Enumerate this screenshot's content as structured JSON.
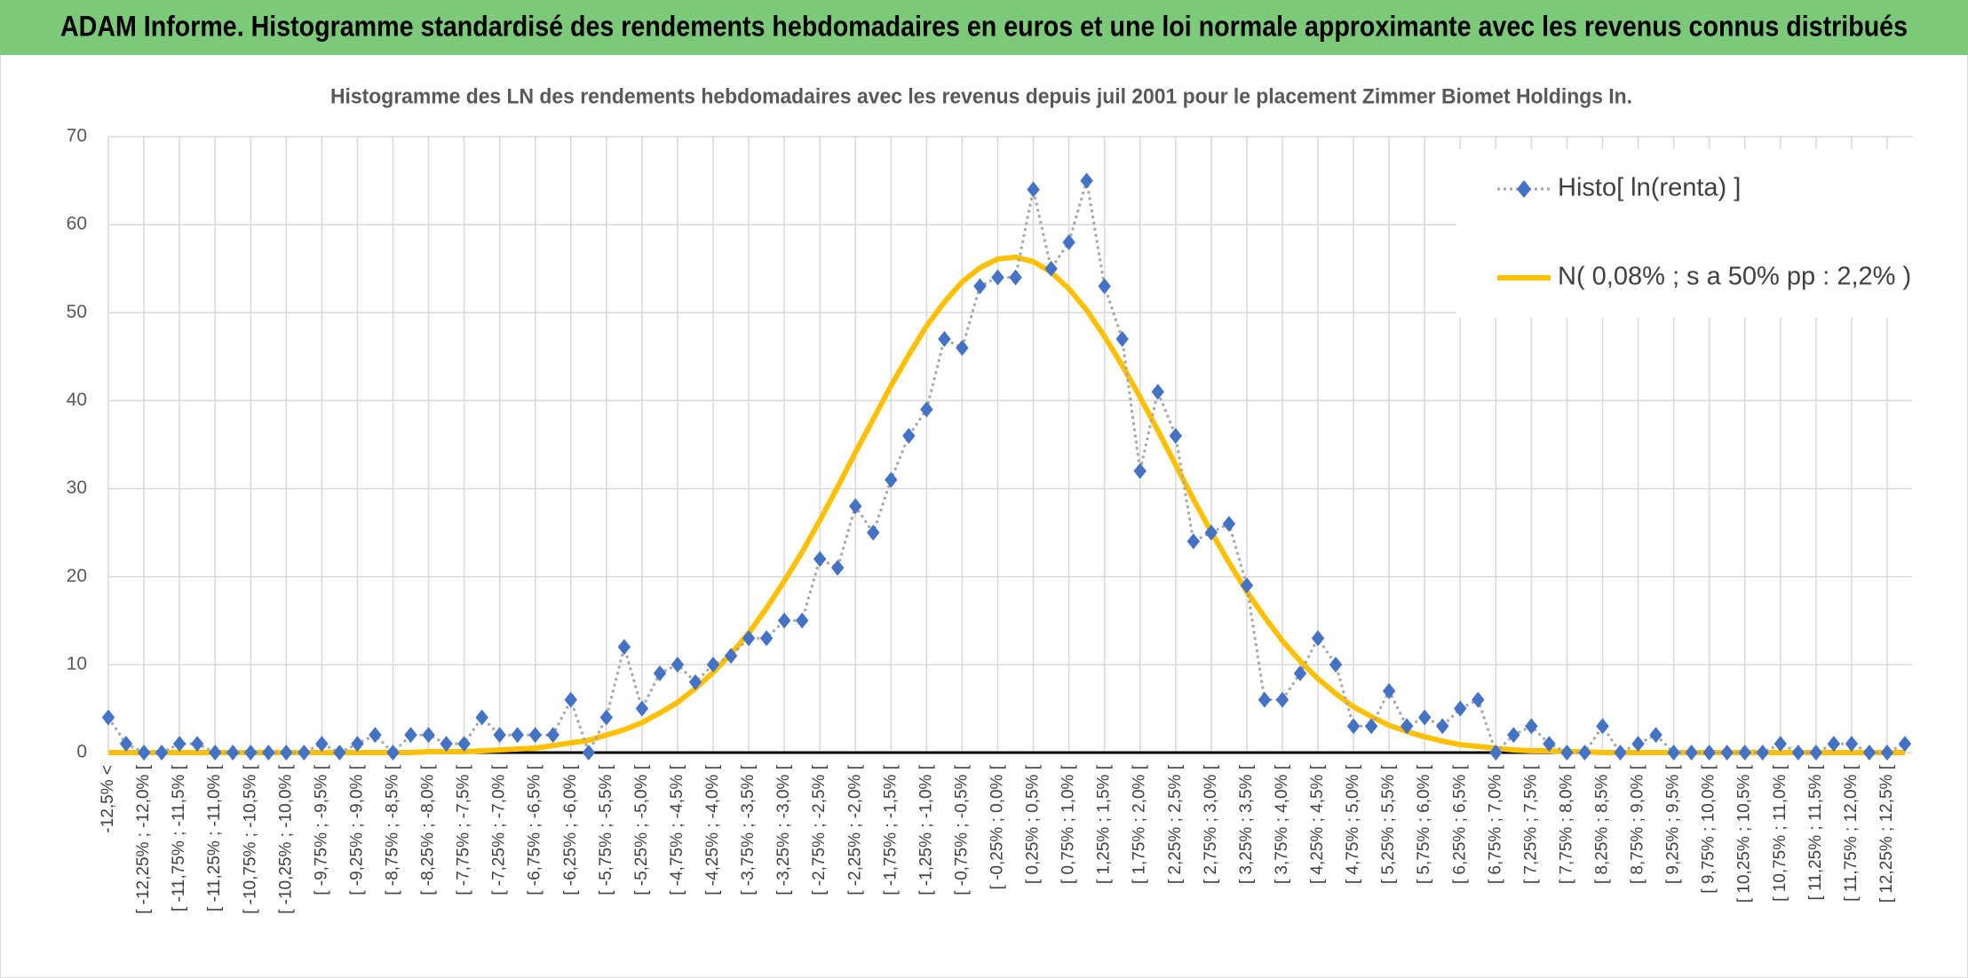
{
  "header": {
    "title": "ADAM Informe. Histogramme standardisé des rendements hebdomadaires en euros et une loi normale approximante avec les revenus connus distribués"
  },
  "chart_data": {
    "type": "line",
    "title": "Histogramme des LN des rendements hebdomadaires avec les revenus depuis juil 2001 pour le placement Zimmer Biomet Holdings In.",
    "categories": [
      "-12,5% <",
      null,
      "[ -12,25% ; -12,0% [",
      null,
      "[ -11,75% ; -11,5% [",
      null,
      "[ -11,25% ; -11,0% [",
      null,
      "[ -10,75% ; -10,5% [",
      null,
      "[ -10,25% ; -10,0% [",
      null,
      "[ -9,75% ; -9,5% [",
      null,
      "[ -9,25% ; -9,0% [",
      null,
      "[ -8,75% ; -8,5% [",
      null,
      "[ -8,25% ; -8,0% [",
      null,
      "[ -7,75% ; -7,5% [",
      null,
      "[ -7,25% ; -7,0% [",
      null,
      "[ -6,75% ; -6,5% [",
      null,
      "[ -6,25% ; -6,0% [",
      null,
      "[ -5,75% ; -5,5% [",
      null,
      "[ -5,25% ; -5,0% [",
      null,
      "[ -4,75% ; -4,5% [",
      null,
      "[ -4,25% ; -4,0% [",
      null,
      "[ -3,75% ; -3,5% [",
      null,
      "[ -3,25% ; -3,0% [",
      null,
      "[ -2,75% ; -2,5% [",
      null,
      "[ -2,25% ; -2,0% [",
      null,
      "[ -1,75% ; -1,5% [",
      null,
      "[ -1,25% ; -1,0% [",
      null,
      "[ -0,75% ; -0,5% [",
      null,
      "[ -0,25% ; 0,0% [",
      null,
      "[ 0,25% ; 0,5% [",
      null,
      "[ 0,75% ; 1,0% [",
      null,
      "[ 1,25% ; 1,5% [",
      null,
      "[ 1,75% ; 2,0% [",
      null,
      "[ 2,25% ; 2,5% [",
      null,
      "[ 2,75% ; 3,0% [",
      null,
      "[ 3,25% ; 3,5% [",
      null,
      "[ 3,75% ; 4,0% [",
      null,
      "[ 4,25% ; 4,5% [",
      null,
      "[ 4,75% ; 5,0% [",
      null,
      "[ 5,25% ; 5,5% [",
      null,
      "[ 5,75% ; 6,0% [",
      null,
      "[ 6,25% ; 6,5% [",
      null,
      "[ 6,75% ; 7,0% [",
      null,
      "[ 7,25% ; 7,5% [",
      null,
      "[ 7,75% ; 8,0% [",
      null,
      "[ 8,25% ; 8,5% [",
      null,
      "[ 8,75% ; 9,0% [",
      null,
      "[ 9,25% ; 9,5% [",
      null,
      "[ 9,75% ; 10,0% [",
      null,
      "[ 10,25% ; 10,5% [",
      null,
      "[ 10,75% ; 11,0% [",
      null,
      "[ 11,25% ; 11,5% [",
      null,
      "[ 11,75% ; 12,0% [",
      null,
      "[ 12,25% ; 12,5% [",
      null
    ],
    "series": [
      {
        "name": "Histo[ ln(renta) ]",
        "color": "#4472c4",
        "line_color": "#a6a6a6",
        "marker": "diamond",
        "values": [
          4,
          1,
          0,
          0,
          1,
          1,
          0,
          0,
          0,
          0,
          0,
          0,
          1,
          0,
          1,
          2,
          0,
          2,
          2,
          1,
          1,
          4,
          2,
          2,
          2,
          2,
          6,
          0,
          4,
          12,
          5,
          9,
          10,
          8,
          10,
          11,
          13,
          13,
          15,
          15,
          22,
          21,
          28,
          25,
          31,
          36,
          39,
          47,
          46,
          53,
          54,
          54,
          64,
          55,
          58,
          65,
          53,
          47,
          32,
          41,
          36,
          24,
          25,
          26,
          19,
          6,
          6,
          9,
          13,
          10,
          3,
          3,
          7,
          3,
          4,
          3,
          5,
          6,
          0,
          2,
          3,
          1,
          0,
          0,
          3,
          0,
          1,
          2,
          0,
          0,
          0,
          0,
          0,
          0,
          1,
          0,
          0,
          1,
          1,
          0,
          0,
          1
        ]
      },
      {
        "name": "N( 0,08% ; s a 50% pp : 2,2% )",
        "color": "#ffc000",
        "values": [
          0,
          0,
          0,
          0,
          0,
          0,
          0,
          0,
          0,
          0,
          0,
          0,
          0,
          0,
          0,
          0,
          0,
          0,
          0.1,
          0.1,
          0.1,
          0.2,
          0.3,
          0.4,
          0.5,
          0.8,
          1.1,
          1.4,
          2.0,
          2.6,
          3.4,
          4.5,
          5.7,
          7.3,
          9.1,
          11.2,
          13.6,
          16.4,
          19.5,
          22.8,
          26.4,
          30.2,
          34.1,
          37.9,
          41.7,
          45.2,
          48.5,
          51.2,
          53.5,
          55.1,
          56.1,
          56.3,
          55.8,
          54.6,
          52.7,
          50.3,
          47.3,
          44.0,
          40.4,
          36.6,
          32.7,
          28.8,
          25.1,
          21.6,
          18.3,
          15.4,
          12.7,
          10.4,
          8.4,
          6.7,
          5.2,
          4.1,
          3.1,
          2.4,
          1.8,
          1.3,
          0.9,
          0.7,
          0.5,
          0.3,
          0.2,
          0.2,
          0.1,
          0.1,
          0,
          0,
          0,
          0,
          0,
          0,
          0,
          0,
          0,
          0,
          0,
          0,
          0,
          0,
          0,
          0,
          0,
          0
        ]
      }
    ],
    "ylim": [
      0,
      70
    ],
    "yticks": [
      0,
      10,
      20,
      30,
      40,
      50,
      60,
      70
    ],
    "grid": true,
    "legend": "upper right"
  }
}
